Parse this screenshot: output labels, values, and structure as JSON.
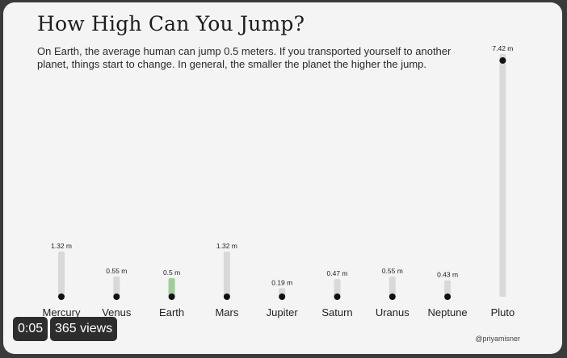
{
  "title": "How High Can You Jump?",
  "subtitle": "On Earth, the average human can jump 0.5 meters. If you transported yourself to another planet, things start to change. In general, the smaller the planet the higher the jump.",
  "credit": "@priyamisner",
  "video": {
    "time": "0:05",
    "views": "365 views"
  },
  "colors": {
    "bar": "#d9d9d9",
    "highlight": "#9fcf97",
    "dot": "#111111",
    "text": "#222222"
  },
  "chart_data": {
    "type": "bar",
    "title": "How High Can You Jump?",
    "xlabel": "",
    "ylabel": "",
    "unit": "m",
    "categories": [
      "Mercury",
      "Venus",
      "Earth",
      "Mars",
      "Jupiter",
      "Saturn",
      "Uranus",
      "Neptune",
      "Pluto"
    ],
    "values": [
      1.32,
      0.55,
      0.5,
      1.32,
      0.19,
      0.47,
      0.55,
      0.43,
      7.42
    ],
    "labels": [
      "1.32 m",
      "0.55 m",
      "0.5 m",
      "1.32 m",
      "0.19 m",
      "0.47 m",
      "0.55 m",
      "0.43 m",
      "7.42 m"
    ],
    "highlight": "Earth",
    "ylim": [
      0,
      7.42
    ],
    "grid": false,
    "legend": "none"
  }
}
